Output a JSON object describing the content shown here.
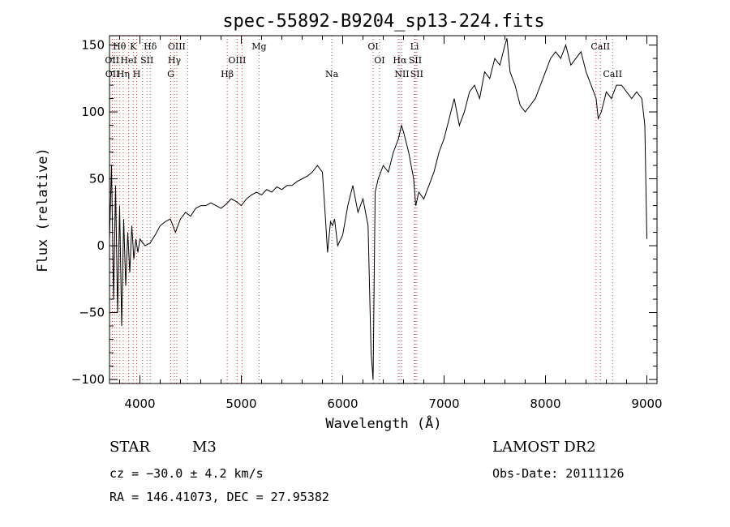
{
  "chart_data": {
    "type": "line",
    "title": "spec-55892-B9204_sp13-224.fits",
    "xlabel": "Wavelength (Å)",
    "ylabel": "Flux (relative)",
    "xlim": [
      3700,
      9100
    ],
    "ylim": [
      -103,
      157
    ],
    "xticks": [
      4000,
      5000,
      6000,
      7000,
      8000,
      9000
    ],
    "yticks": [
      -100,
      -50,
      0,
      50,
      100,
      150
    ],
    "grid": false,
    "series": [
      {
        "x": [
          3700,
          3720,
          3740,
          3760,
          3780,
          3800,
          3820,
          3840,
          3860,
          3880,
          3900,
          3920,
          3940,
          3960,
          3980,
          4000,
          4050,
          4100,
          4150,
          4200,
          4250,
          4300,
          4350,
          4400,
          4450,
          4500,
          4550,
          4600,
          4650,
          4700,
          4750,
          4800,
          4850,
          4900,
          4950,
          5000,
          5050,
          5100,
          5150,
          5200,
          5250,
          5300,
          5350,
          5400,
          5450,
          5500,
          5550,
          5600,
          5650,
          5700,
          5750,
          5800,
          5830,
          5850,
          5880,
          5900,
          5920,
          5950,
          6000,
          6050,
          6100,
          6150,
          6200,
          6250,
          6280,
          6300,
          6320,
          6350,
          6400,
          6450,
          6500,
          6550,
          6580,
          6600,
          6650,
          6700,
          6720,
          6750,
          6800,
          6850,
          6900,
          6950,
          7000,
          7050,
          7100,
          7150,
          7200,
          7250,
          7300,
          7350,
          7400,
          7450,
          7500,
          7550,
          7600,
          7620,
          7650,
          7700,
          7750,
          7800,
          7850,
          7900,
          7950,
          8000,
          8050,
          8100,
          8150,
          8200,
          8250,
          8300,
          8350,
          8400,
          8450,
          8500,
          8520,
          8550,
          8600,
          8650,
          8700,
          8750,
          8800,
          8850,
          8900,
          8950,
          8980,
          9000
        ],
        "values": [
          5,
          60,
          -40,
          45,
          -50,
          30,
          -60,
          20,
          -30,
          10,
          -20,
          15,
          -10,
          5,
          -5,
          5,
          0,
          2,
          8,
          15,
          18,
          20,
          10,
          20,
          25,
          22,
          28,
          30,
          30,
          32,
          30,
          28,
          31,
          35,
          33,
          30,
          35,
          38,
          40,
          38,
          42,
          40,
          44,
          42,
          45,
          45,
          48,
          50,
          52,
          55,
          60,
          55,
          20,
          -5,
          18,
          15,
          20,
          0,
          8,
          30,
          45,
          25,
          35,
          15,
          -80,
          -100,
          40,
          50,
          60,
          55,
          70,
          80,
          90,
          85,
          70,
          50,
          30,
          40,
          35,
          45,
          55,
          70,
          80,
          95,
          110,
          90,
          100,
          115,
          120,
          110,
          130,
          125,
          140,
          135,
          150,
          155,
          130,
          120,
          105,
          100,
          105,
          110,
          120,
          130,
          140,
          145,
          140,
          150,
          135,
          140,
          145,
          130,
          120,
          110,
          95,
          100,
          115,
          110,
          120,
          120,
          115,
          110,
          115,
          110,
          90,
          5
        ]
      }
    ],
    "lines": [
      {
        "name": "Hθ",
        "x": 3798,
        "row": 0
      },
      {
        "name": "K",
        "x": 3934,
        "row": 0
      },
      {
        "name": "Hδ",
        "x": 4102,
        "row": 0
      },
      {
        "name": "OIII",
        "x": 4363,
        "row": 0
      },
      {
        "name": "Mg",
        "x": 5175,
        "row": 0
      },
      {
        "name": "OI",
        "x": 6300,
        "row": 0
      },
      {
        "name": "Li",
        "x": 6708,
        "row": 0
      },
      {
        "name": "CaII",
        "x": 8542,
        "row": 0
      },
      {
        "name": "OII",
        "x": 3726,
        "row": 1
      },
      {
        "name": "HeI",
        "x": 3889,
        "row": 1
      },
      {
        "name": "SII",
        "x": 4070,
        "row": 1
      },
      {
        "name": "Hγ",
        "x": 4340,
        "row": 1
      },
      {
        "name": "OIII",
        "x": 4959,
        "row": 1
      },
      {
        "name": "OI",
        "x": 6363,
        "row": 1
      },
      {
        "name": "Hα",
        "x": 6563,
        "row": 1
      },
      {
        "name": "SII",
        "x": 6716,
        "row": 1
      },
      {
        "name": "OII",
        "x": 3729,
        "row": 2
      },
      {
        "name": "Hη",
        "x": 3835,
        "row": 2
      },
      {
        "name": "H",
        "x": 3968,
        "row": 2
      },
      {
        "name": "G",
        "x": 4304,
        "row": 2
      },
      {
        "name": "Hβ",
        "x": 4861,
        "row": 2
      },
      {
        "name": "Na",
        "x": 5893,
        "row": 2
      },
      {
        "name": "NII",
        "x": 6584,
        "row": 2
      },
      {
        "name": "SII",
        "x": 6731,
        "row": 2
      },
      {
        "name": "CaII",
        "x": 8662,
        "row": 2
      }
    ],
    "extra_line_markers": [
      3750,
      3771,
      3889,
      4026,
      4471,
      5007,
      6548,
      8498
    ]
  },
  "info": {
    "class": "STAR",
    "subclass": "M3",
    "survey": "LAMOST DR2",
    "cz": "cz = −30.0 ± 4.2 km/s",
    "obs_date": "Obs-Date: 20111126",
    "radec": "RA = 146.41073, DEC =  27.95382"
  },
  "colors": {
    "line_marker": "#d04040",
    "spectrum": "#000000"
  }
}
